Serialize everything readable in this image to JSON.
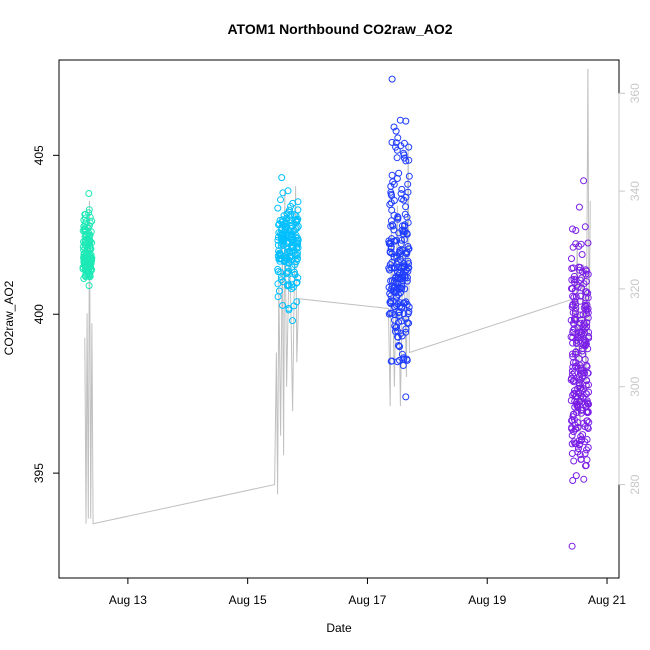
{
  "chart_data": {
    "type": "scatter",
    "title": "ATOM1 Northbound CO2raw_AO2",
    "xlabel": "Date",
    "ylabel": "CO2raw_AO2",
    "x_ticks": [
      {
        "value": 13,
        "label": "Aug 13"
      },
      {
        "value": 15,
        "label": "Aug 15"
      },
      {
        "value": 17,
        "label": "Aug 17"
      },
      {
        "value": 19,
        "label": "Aug 19"
      },
      {
        "value": 21,
        "label": "Aug 21"
      }
    ],
    "xlim": [
      11.85,
      21.2
    ],
    "ylim": [
      391.7,
      408.0
    ],
    "y_ticks": [
      395,
      400,
      405
    ],
    "y2lim": [
      260.9,
      366.8
    ],
    "y2_ticks": [
      280,
      300,
      320,
      340,
      360
    ],
    "grid": false,
    "legend": "none",
    "colors": {
      "clusterA": "#1de9b6",
      "clusterB": "#00bfff",
      "clusterC": "#1e3cff",
      "clusterD": "#7a1fe6",
      "line": "#c0c0c0",
      "right_axis": "#c8c8c8"
    },
    "clusters": [
      {
        "name": "A",
        "color_key": "clusterA",
        "x_start": 12.25,
        "x_end": 12.4,
        "y_min": 400.9,
        "y_max": 403.8,
        "y_center": 401.8,
        "count": 140
      },
      {
        "name": "B",
        "color_key": "clusterB",
        "x_start": 15.5,
        "x_end": 15.85,
        "y_min": 399.8,
        "y_max": 404.3,
        "y_center": 402.2,
        "count": 170
      },
      {
        "name": "C",
        "color_key": "clusterC",
        "x_start": 17.35,
        "x_end": 17.7,
        "y_min": 397.4,
        "y_max": 407.4,
        "y_center": 401.5,
        "count": 220
      },
      {
        "name": "D",
        "color_key": "clusterD",
        "x_start": 20.4,
        "x_end": 20.7,
        "y_min": 392.7,
        "y_max": 404.2,
        "y_center": 398.2,
        "count": 260
      }
    ],
    "secondary_line": {
      "axis": "right",
      "points": [
        [
          12.28,
          310
        ],
        [
          12.3,
          272
        ],
        [
          12.32,
          315
        ],
        [
          12.34,
          273
        ],
        [
          12.36,
          338
        ],
        [
          12.38,
          273
        ],
        [
          12.4,
          313
        ],
        [
          12.42,
          272
        ],
        [
          15.45,
          280
        ],
        [
          15.48,
          307
        ],
        [
          15.5,
          278
        ],
        [
          15.52,
          322
        ],
        [
          15.55,
          290
        ],
        [
          15.58,
          330
        ],
        [
          15.6,
          286
        ],
        [
          15.62,
          340
        ],
        [
          15.65,
          300
        ],
        [
          15.7,
          331
        ],
        [
          15.75,
          295
        ],
        [
          15.8,
          341
        ],
        [
          15.82,
          305
        ],
        [
          15.85,
          318
        ],
        [
          17.35,
          316
        ],
        [
          17.38,
          296
        ],
        [
          17.4,
          333
        ],
        [
          17.45,
          300
        ],
        [
          17.5,
          337
        ],
        [
          17.55,
          296
        ],
        [
          17.6,
          333
        ],
        [
          17.65,
          302
        ],
        [
          17.68,
          350
        ],
        [
          17.7,
          307
        ],
        [
          20.45,
          318
        ],
        [
          20.48,
          304
        ],
        [
          20.5,
          330
        ],
        [
          20.55,
          290
        ],
        [
          20.6,
          325
        ],
        [
          20.65,
          300
        ],
        [
          20.68,
          365
        ],
        [
          20.7,
          310
        ],
        [
          20.72,
          338
        ]
      ]
    }
  }
}
